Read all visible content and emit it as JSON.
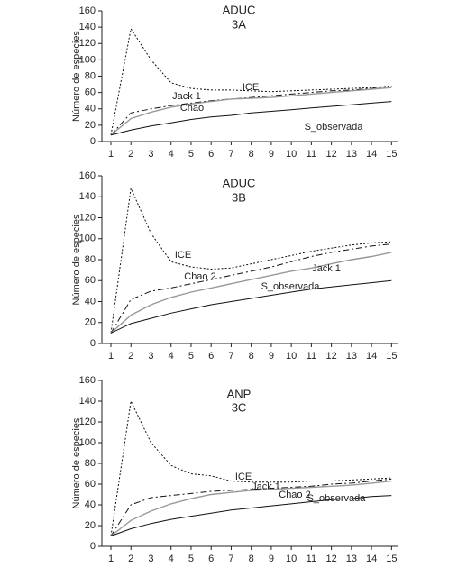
{
  "chart_data": [
    {
      "type": "line",
      "title": "ADUC",
      "subtitle": "3A",
      "y_label": "Número de especies",
      "x": [
        1,
        2,
        3,
        4,
        5,
        6,
        7,
        8,
        9,
        10,
        11,
        12,
        13,
        14,
        15
      ],
      "xlim": [
        0.55,
        15.3
      ],
      "xticks": [
        1,
        2,
        3,
        4,
        5,
        6,
        7,
        8,
        9,
        10,
        11,
        12,
        13,
        14,
        15
      ],
      "ylim": [
        0,
        160
      ],
      "yticks": [
        0,
        20,
        40,
        60,
        80,
        100,
        120,
        140,
        160
      ],
      "series": [
        {
          "name": "ICE",
          "color": "#111111",
          "style": "dotted",
          "values": [
            8,
            138,
            100,
            72,
            65,
            63,
            63,
            62,
            61,
            62,
            63,
            64,
            65,
            66,
            68
          ]
        },
        {
          "name": "Jack 1",
          "color": "#111111",
          "style": "dashdot",
          "values": [
            8,
            35,
            40,
            44,
            47,
            50,
            52,
            54,
            56,
            58,
            60,
            62,
            63,
            65,
            67
          ]
        },
        {
          "name": "Chao",
          "color": "#999999",
          "style": "solid",
          "values": [
            8,
            28,
            36,
            42,
            46,
            49,
            52,
            53,
            54,
            56,
            58,
            60,
            62,
            64,
            66
          ]
        },
        {
          "name": "S_observada",
          "color": "#111111",
          "style": "solid",
          "values": [
            8,
            14,
            19,
            23,
            27,
            30,
            32,
            35,
            37,
            39,
            41,
            43,
            45,
            47,
            49
          ]
        }
      ]
    },
    {
      "type": "line",
      "title": "ADUC",
      "subtitle": "3B",
      "y_label": "Número de especies",
      "x": [
        1,
        2,
        3,
        4,
        5,
        6,
        7,
        8,
        9,
        10,
        11,
        12,
        13,
        14,
        15
      ],
      "xlim": [
        0.55,
        15.3
      ],
      "xticks": [
        1,
        2,
        3,
        4,
        5,
        6,
        7,
        8,
        9,
        10,
        11,
        12,
        13,
        14,
        15
      ],
      "ylim": [
        0,
        160
      ],
      "yticks": [
        0,
        20,
        40,
        60,
        80,
        100,
        120,
        140,
        160
      ],
      "series": [
        {
          "name": "ICE",
          "color": "#111111",
          "style": "dotted",
          "values": [
            10,
            148,
            105,
            78,
            73,
            71,
            72,
            76,
            80,
            84,
            88,
            91,
            94,
            96,
            97
          ]
        },
        {
          "name": "Chao 2",
          "color": "#111111",
          "style": "dashdot",
          "values": [
            10,
            42,
            50,
            53,
            57,
            61,
            65,
            69,
            73,
            78,
            83,
            87,
            90,
            93,
            95
          ]
        },
        {
          "name": "Jack 1",
          "color": "#999999",
          "style": "solid",
          "values": [
            10,
            27,
            37,
            44,
            49,
            53,
            57,
            61,
            65,
            69,
            72,
            76,
            80,
            83,
            87
          ]
        },
        {
          "name": "S_observada",
          "color": "#111111",
          "style": "solid",
          "values": [
            10,
            19,
            24,
            29,
            33,
            37,
            40,
            43,
            46,
            49,
            52,
            54,
            56,
            58,
            60
          ]
        }
      ]
    },
    {
      "type": "line",
      "title": "ANP",
      "subtitle": "3C",
      "y_label": "Número de especies",
      "x": [
        1,
        2,
        3,
        4,
        5,
        6,
        7,
        8,
        9,
        10,
        11,
        12,
        13,
        14,
        15
      ],
      "xlim": [
        0.55,
        15.3
      ],
      "xticks": [
        1,
        2,
        3,
        4,
        5,
        6,
        7,
        8,
        9,
        10,
        11,
        12,
        13,
        14,
        15
      ],
      "ylim": [
        0,
        160
      ],
      "yticks": [
        0,
        20,
        40,
        60,
        80,
        100,
        120,
        140,
        160
      ],
      "series": [
        {
          "name": "ICE",
          "color": "#111111",
          "style": "dotted",
          "values": [
            10,
            140,
            100,
            78,
            70,
            68,
            63,
            62,
            62,
            62,
            63,
            63,
            64,
            65,
            66
          ]
        },
        {
          "name": "Jack 1",
          "color": "#111111",
          "style": "dashdot",
          "values": [
            10,
            40,
            47,
            49,
            51,
            53,
            54,
            55,
            56,
            57,
            58,
            60,
            61,
            63,
            65
          ]
        },
        {
          "name": "Chao 2",
          "color": "#999999",
          "style": "solid",
          "values": [
            10,
            25,
            34,
            41,
            46,
            50,
            52,
            54,
            55,
            56,
            57,
            58,
            59,
            61,
            63
          ]
        },
        {
          "name": "S_observada",
          "color": "#111111",
          "style": "solid",
          "values": [
            10,
            17,
            22,
            26,
            29,
            32,
            35,
            37,
            39,
            41,
            43,
            45,
            46,
            48,
            49
          ]
        }
      ]
    }
  ]
}
